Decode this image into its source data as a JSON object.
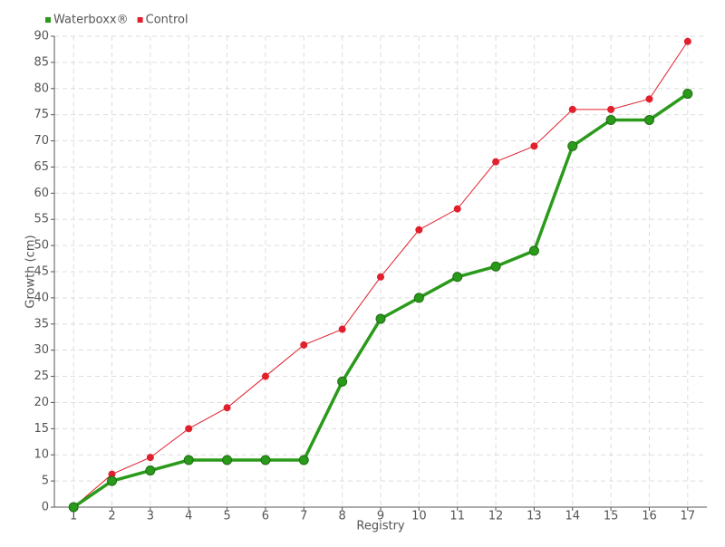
{
  "chart_data": {
    "type": "line",
    "x_label": "Registry",
    "y_label": "Growth (cm)",
    "categories": [
      "1",
      "2",
      "3",
      "4",
      "5",
      "6",
      "7",
      "8",
      "9",
      "10",
      "11",
      "12",
      "13",
      "14",
      "15",
      "16",
      "17"
    ],
    "series": [
      {
        "name": "Waterboxx®",
        "color": "#2a9a1a",
        "values": [
          0,
          5,
          7,
          9,
          9,
          9,
          9,
          24,
          36,
          40,
          44,
          46,
          49,
          69,
          74,
          74,
          79
        ]
      },
      {
        "name": "Control",
        "color": "#e0202c",
        "values": [
          0,
          6.3,
          9.5,
          15,
          19,
          25,
          31,
          34,
          44,
          53,
          57,
          66,
          69,
          76,
          76,
          78,
          89
        ]
      }
    ],
    "ylim": [
      0,
      90
    ],
    "yticks": [
      0,
      5,
      10,
      15,
      20,
      25,
      30,
      35,
      40,
      45,
      50,
      55,
      60,
      65,
      70,
      75,
      80,
      85,
      90
    ],
    "grid": true,
    "legend": "top-left"
  }
}
